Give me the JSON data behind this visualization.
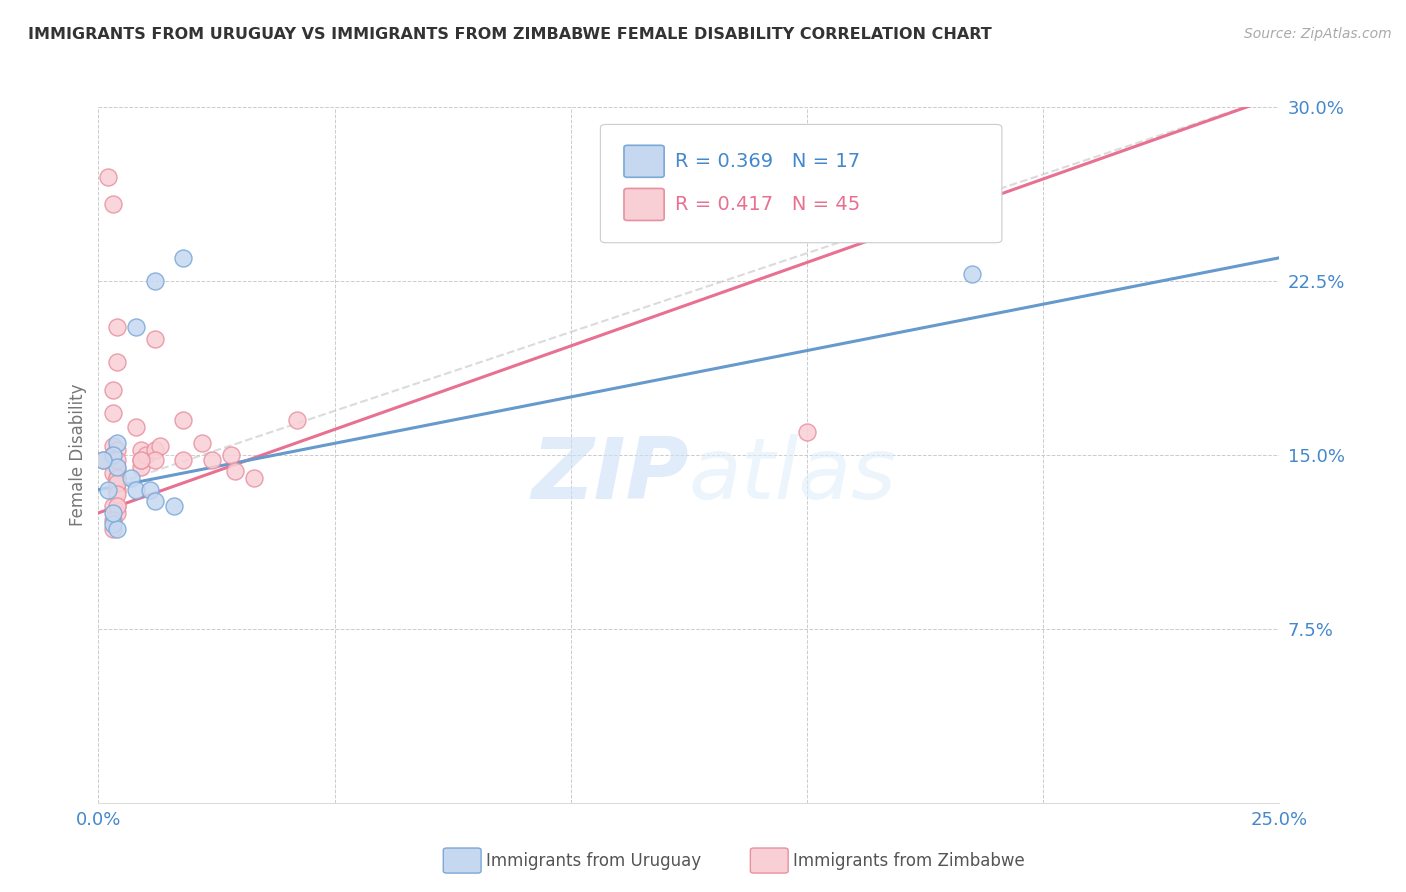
{
  "title": "IMMIGRANTS FROM URUGUAY VS IMMIGRANTS FROM ZIMBABWE FEMALE DISABILITY CORRELATION CHART",
  "source": "Source: ZipAtlas.com",
  "ylabel": "Female Disability",
  "xlim": [
    0.0,
    0.25
  ],
  "ylim": [
    0.0,
    0.3
  ],
  "xticks": [
    0.0,
    0.05,
    0.1,
    0.15,
    0.2,
    0.25
  ],
  "yticks": [
    0.0,
    0.075,
    0.15,
    0.225,
    0.3
  ],
  "xticklabels_show": [
    "0.0%",
    "25.0%"
  ],
  "yticklabels_show": [
    "7.5%",
    "15.0%",
    "22.5%",
    "30.0%"
  ],
  "uruguay_R": 0.369,
  "uruguay_N": 17,
  "zimbabwe_R": 0.417,
  "zimbabwe_N": 45,
  "uruguay_color": "#c5d8f0",
  "zimbabwe_color": "#f9cfd6",
  "uruguay_edge": "#7aa8d8",
  "zimbabwe_edge": "#e8909f",
  "trendline_uruguay_color": "#6699cc",
  "trendline_zimbabwe_color": "#e87090",
  "trendline_dashed_color": "#cccccc",
  "watermark_zip_color": "#ddeeff",
  "watermark_atlas_color": "#e8f4ff",
  "legend_R_color_uru": "#4488cc",
  "legend_R_color_zim": "#e87090",
  "tick_color": "#4488cc",
  "ylabel_color": "#777777",
  "title_color": "#333333",
  "source_color": "#aaaaaa",
  "bottom_legend_color": "#555555",
  "uruguay_scatter_x": [
    0.018,
    0.012,
    0.008,
    0.004,
    0.003,
    0.004,
    0.002,
    0.007,
    0.008,
    0.011,
    0.012,
    0.016,
    0.003,
    0.004,
    0.003,
    0.185,
    0.001
  ],
  "uruguay_scatter_y": [
    0.235,
    0.225,
    0.205,
    0.155,
    0.15,
    0.145,
    0.135,
    0.14,
    0.135,
    0.135,
    0.13,
    0.128,
    0.12,
    0.118,
    0.125,
    0.228,
    0.148
  ],
  "zimbabwe_scatter_x": [
    0.002,
    0.012,
    0.018,
    0.003,
    0.004,
    0.004,
    0.003,
    0.003,
    0.008,
    0.009,
    0.009,
    0.004,
    0.004,
    0.004,
    0.004,
    0.003,
    0.003,
    0.004,
    0.003,
    0.004,
    0.003,
    0.009,
    0.01,
    0.012,
    0.013,
    0.012,
    0.018,
    0.022,
    0.024,
    0.042,
    0.004,
    0.028,
    0.029,
    0.033,
    0.15,
    0.009,
    0.004,
    0.003,
    0.004,
    0.004,
    0.004,
    0.004,
    0.003,
    0.003,
    0.001
  ],
  "zimbabwe_scatter_y": [
    0.27,
    0.2,
    0.165,
    0.258,
    0.205,
    0.19,
    0.178,
    0.168,
    0.162,
    0.152,
    0.145,
    0.14,
    0.135,
    0.128,
    0.125,
    0.154,
    0.15,
    0.152,
    0.148,
    0.144,
    0.142,
    0.148,
    0.15,
    0.152,
    0.154,
    0.148,
    0.148,
    0.155,
    0.148,
    0.165,
    0.148,
    0.15,
    0.143,
    0.14,
    0.16,
    0.148,
    0.14,
    0.128,
    0.14,
    0.138,
    0.133,
    0.128,
    0.122,
    0.118,
    0.148
  ],
  "trendline_uru_x0": 0.0,
  "trendline_uru_y0": 0.135,
  "trendline_uru_x1": 0.25,
  "trendline_uru_y1": 0.235,
  "trendline_zim_x0": 0.0,
  "trendline_zim_y0": 0.125,
  "trendline_zim_x1": 0.25,
  "trendline_zim_y1": 0.305,
  "trendline_dash_x0": 0.0,
  "trendline_dash_y0": 0.135,
  "trendline_dash_x1": 0.25,
  "trendline_dash_y1": 0.305
}
